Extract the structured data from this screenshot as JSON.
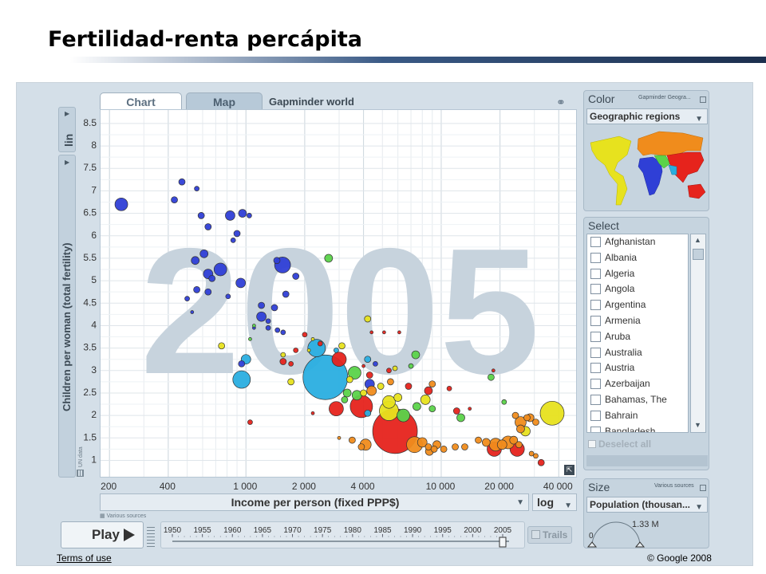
{
  "slide": {
    "title": "Fertilidad-renta percápita"
  },
  "app": {
    "tabs": [
      {
        "label": "Chart"
      },
      {
        "label": "Map"
      }
    ],
    "subtitle": "Gapminder world",
    "y_scale_button": "lin",
    "y_axis_label": "Children per woman (total fertility)",
    "y_source": "UN data",
    "x_axis_label": "Income per person (fixed PPP$)",
    "x_scale": "log",
    "x_source": "Various sources",
    "year_watermark": "2005",
    "play_label": "Play",
    "timeline_years": [
      "1950",
      "1955",
      "1960",
      "1965",
      "1970",
      "1975",
      "1980",
      "1985",
      "1990",
      "1995",
      "2000",
      "2005"
    ],
    "current_year": 2005,
    "trails_label": "Trails",
    "color_panel": {
      "title": "Color",
      "source": "Gapminder Geogra...",
      "selected": "Geographic regions"
    },
    "select_panel": {
      "title": "Select",
      "countries": [
        "Afghanistan",
        "Albania",
        "Algeria",
        "Angola",
        "Argentina",
        "Armenia",
        "Aruba",
        "Australia",
        "Austria",
        "Azerbaijan",
        "Bahamas, The",
        "Bahrain",
        "Bangladesh"
      ],
      "deselect_label": "Deselect all"
    },
    "size_panel": {
      "title": "Size",
      "source": "Various sources",
      "selected": "Population (thousan...",
      "legend_min": "0",
      "legend_max": "1.33 M"
    },
    "footer": {
      "terms": "Terms of use",
      "copyright": "© Google 2008"
    },
    "colors": {
      "asia_east": "#2f3fd6",
      "south_asia": "#2aaee0",
      "europe": "#f08c1c",
      "africa": "#e6231c",
      "americas": "#5bd34a",
      "middle_east": "#e7e21e"
    }
  },
  "chart_data": {
    "type": "scatter",
    "x_scale": "log",
    "xlim": [
      180,
      50000
    ],
    "ylim": [
      0.6,
      8.8
    ],
    "x_ticks": [
      200,
      400,
      1000,
      2000,
      4000,
      10000,
      20000,
      40000
    ],
    "x_tick_labels": [
      "200",
      "400",
      "1 000",
      "2 000",
      "4 000",
      "10 000",
      "20 000",
      "40 000"
    ],
    "y_ticks": [
      1,
      1.5,
      2,
      2.5,
      3,
      3.5,
      4,
      4.5,
      5,
      5.5,
      6,
      6.5,
      7,
      7.5,
      8,
      8.5
    ],
    "y_tick_labels": [
      "1",
      "1.5",
      "2",
      "2.5",
      "3",
      "3.5",
      "4",
      "4.5",
      "5",
      "5.5",
      "6",
      "6.5",
      "7",
      "7.5",
      "8",
      "8.5"
    ],
    "xlabel": "Income per person (fixed PPP$)",
    "ylabel": "Children per woman (total fertility)",
    "year": "2005",
    "points": [
      {
        "x": 230,
        "y": 6.7,
        "r": 8,
        "c": "blue"
      },
      {
        "x": 470,
        "y": 7.2,
        "r": 4,
        "c": "blue"
      },
      {
        "x": 430,
        "y": 6.8,
        "r": 4,
        "c": "blue"
      },
      {
        "x": 560,
        "y": 7.05,
        "r": 3,
        "c": "blue"
      },
      {
        "x": 960,
        "y": 6.5,
        "r": 5,
        "c": "blue"
      },
      {
        "x": 1040,
        "y": 6.45,
        "r": 3,
        "c": "blue"
      },
      {
        "x": 830,
        "y": 6.45,
        "r": 6,
        "c": "blue"
      },
      {
        "x": 590,
        "y": 6.45,
        "r": 4,
        "c": "blue"
      },
      {
        "x": 640,
        "y": 6.2,
        "r": 4,
        "c": "blue"
      },
      {
        "x": 900,
        "y": 6.05,
        "r": 4,
        "c": "blue"
      },
      {
        "x": 860,
        "y": 5.9,
        "r": 3,
        "c": "blue"
      },
      {
        "x": 550,
        "y": 5.45,
        "r": 5,
        "c": "blue"
      },
      {
        "x": 610,
        "y": 5.6,
        "r": 5,
        "c": "blue"
      },
      {
        "x": 740,
        "y": 5.25,
        "r": 8,
        "c": "blue"
      },
      {
        "x": 640,
        "y": 5.15,
        "r": 6,
        "c": "blue"
      },
      {
        "x": 670,
        "y": 5.05,
        "r": 4,
        "c": "blue"
      },
      {
        "x": 940,
        "y": 4.95,
        "r": 6,
        "c": "blue"
      },
      {
        "x": 560,
        "y": 4.8,
        "r": 4,
        "c": "blue"
      },
      {
        "x": 640,
        "y": 4.75,
        "r": 4,
        "c": "blue"
      },
      {
        "x": 1540,
        "y": 5.35,
        "r": 10,
        "c": "blue"
      },
      {
        "x": 1440,
        "y": 5.45,
        "r": 4,
        "c": "blue"
      },
      {
        "x": 1800,
        "y": 5.1,
        "r": 4,
        "c": "blue"
      },
      {
        "x": 500,
        "y": 4.6,
        "r": 3,
        "c": "blue"
      },
      {
        "x": 530,
        "y": 4.3,
        "r": 2,
        "c": "blue"
      },
      {
        "x": 810,
        "y": 4.65,
        "r": 3,
        "c": "blue"
      },
      {
        "x": 1200,
        "y": 4.45,
        "r": 4,
        "c": "blue"
      },
      {
        "x": 1400,
        "y": 4.4,
        "r": 4,
        "c": "blue"
      },
      {
        "x": 1600,
        "y": 4.7,
        "r": 4,
        "c": "blue"
      },
      {
        "x": 1200,
        "y": 4.2,
        "r": 6,
        "c": "blue"
      },
      {
        "x": 1300,
        "y": 4.1,
        "r": 3,
        "c": "blue"
      },
      {
        "x": 1300,
        "y": 3.95,
        "r": 3,
        "c": "blue"
      },
      {
        "x": 1450,
        "y": 3.9,
        "r": 3,
        "c": "blue"
      },
      {
        "x": 1550,
        "y": 3.85,
        "r": 3,
        "c": "blue"
      },
      {
        "x": 1100,
        "y": 3.95,
        "r": 2,
        "c": "blue"
      },
      {
        "x": 2650,
        "y": 5.5,
        "r": 5,
        "c": "green"
      },
      {
        "x": 1100,
        "y": 4.0,
        "r": 2,
        "c": "green"
      },
      {
        "x": 1050,
        "y": 3.7,
        "r": 2,
        "c": "green"
      },
      {
        "x": 750,
        "y": 3.55,
        "r": 4,
        "c": "yellow"
      },
      {
        "x": 4200,
        "y": 4.15,
        "r": 4,
        "c": "yellow"
      },
      {
        "x": 4400,
        "y": 3.85,
        "r": 2,
        "c": "red"
      },
      {
        "x": 5100,
        "y": 3.85,
        "r": 2,
        "c": "red"
      },
      {
        "x": 6100,
        "y": 3.85,
        "r": 2,
        "c": "red"
      },
      {
        "x": 2000,
        "y": 3.8,
        "r": 3,
        "c": "red"
      },
      {
        "x": 2200,
        "y": 3.7,
        "r": 2,
        "c": "yellow"
      },
      {
        "x": 1550,
        "y": 3.35,
        "r": 3,
        "c": "yellow"
      },
      {
        "x": 2100,
        "y": 3.45,
        "r": 2,
        "c": "yellow"
      },
      {
        "x": 2400,
        "y": 3.6,
        "r": 3,
        "c": "red"
      },
      {
        "x": 2300,
        "y": 3.5,
        "r": 11,
        "c": "cyan"
      },
      {
        "x": 1000,
        "y": 3.25,
        "r": 6,
        "c": "cyan"
      },
      {
        "x": 950,
        "y": 3.15,
        "r": 4,
        "c": "blue"
      },
      {
        "x": 1800,
        "y": 3.45,
        "r": 3,
        "c": "red"
      },
      {
        "x": 1550,
        "y": 3.2,
        "r": 4,
        "c": "red"
      },
      {
        "x": 1700,
        "y": 3.15,
        "r": 3,
        "c": "red"
      },
      {
        "x": 3100,
        "y": 3.55,
        "r": 4,
        "c": "yellow"
      },
      {
        "x": 2900,
        "y": 3.45,
        "r": 3,
        "c": "cyan"
      },
      {
        "x": 4200,
        "y": 3.25,
        "r": 4,
        "c": "cyan"
      },
      {
        "x": 4000,
        "y": 3.1,
        "r": 2,
        "c": "red"
      },
      {
        "x": 4600,
        "y": 3.15,
        "r": 3,
        "c": "blue"
      },
      {
        "x": 5400,
        "y": 3.0,
        "r": 3,
        "c": "red"
      },
      {
        "x": 5800,
        "y": 3.05,
        "r": 3,
        "c": "yellow"
      },
      {
        "x": 7000,
        "y": 3.1,
        "r": 3,
        "c": "green"
      },
      {
        "x": 7400,
        "y": 3.35,
        "r": 5,
        "c": "green"
      },
      {
        "x": 3000,
        "y": 3.25,
        "r": 9,
        "c": "red"
      },
      {
        "x": 3600,
        "y": 2.95,
        "r": 8,
        "c": "green"
      },
      {
        "x": 4300,
        "y": 2.9,
        "r": 4,
        "c": "red"
      },
      {
        "x": 2550,
        "y": 2.85,
        "r": 28,
        "c": "cyan"
      },
      {
        "x": 950,
        "y": 2.8,
        "r": 11,
        "c": "cyan"
      },
      {
        "x": 1700,
        "y": 2.75,
        "r": 4,
        "c": "yellow"
      },
      {
        "x": 3400,
        "y": 2.8,
        "r": 4,
        "c": "yellow"
      },
      {
        "x": 4300,
        "y": 2.7,
        "r": 6,
        "c": "blue"
      },
      {
        "x": 4900,
        "y": 2.65,
        "r": 4,
        "c": "yellow"
      },
      {
        "x": 4400,
        "y": 2.55,
        "r": 6,
        "c": "orange"
      },
      {
        "x": 3300,
        "y": 2.5,
        "r": 5,
        "c": "green"
      },
      {
        "x": 3700,
        "y": 2.45,
        "r": 6,
        "c": "green"
      },
      {
        "x": 4000,
        "y": 2.5,
        "r": 4,
        "c": "yellow"
      },
      {
        "x": 3200,
        "y": 2.35,
        "r": 4,
        "c": "green"
      },
      {
        "x": 3900,
        "y": 2.2,
        "r": 14,
        "c": "red"
      },
      {
        "x": 2900,
        "y": 2.15,
        "r": 9,
        "c": "red"
      },
      {
        "x": 4200,
        "y": 2.05,
        "r": 4,
        "c": "cyan"
      },
      {
        "x": 5400,
        "y": 2.3,
        "r": 8,
        "c": "yellow"
      },
      {
        "x": 6000,
        "y": 2.4,
        "r": 5,
        "c": "yellow"
      },
      {
        "x": 5400,
        "y": 2.1,
        "r": 12,
        "c": "yellow"
      },
      {
        "x": 6400,
        "y": 2.0,
        "r": 8,
        "c": "green"
      },
      {
        "x": 7500,
        "y": 2.2,
        "r": 5,
        "c": "green"
      },
      {
        "x": 8300,
        "y": 2.35,
        "r": 6,
        "c": "yellow"
      },
      {
        "x": 8600,
        "y": 2.55,
        "r": 5,
        "c": "red"
      },
      {
        "x": 9000,
        "y": 2.7,
        "r": 4,
        "c": "orange"
      },
      {
        "x": 9000,
        "y": 2.15,
        "r": 4,
        "c": "green"
      },
      {
        "x": 5500,
        "y": 2.75,
        "r": 4,
        "c": "orange"
      },
      {
        "x": 6800,
        "y": 2.65,
        "r": 4,
        "c": "red"
      },
      {
        "x": 11000,
        "y": 2.6,
        "r": 3,
        "c": "red"
      },
      {
        "x": 12000,
        "y": 2.1,
        "r": 4,
        "c": "red"
      },
      {
        "x": 12600,
        "y": 1.95,
        "r": 5,
        "c": "green"
      },
      {
        "x": 14000,
        "y": 2.15,
        "r": 2,
        "c": "red"
      },
      {
        "x": 18000,
        "y": 2.85,
        "r": 4,
        "c": "green"
      },
      {
        "x": 18500,
        "y": 3.0,
        "r": 2,
        "c": "red"
      },
      {
        "x": 21000,
        "y": 2.3,
        "r": 3,
        "c": "green"
      },
      {
        "x": 5800,
        "y": 1.65,
        "r": 28,
        "c": "red"
      },
      {
        "x": 2200,
        "y": 2.05,
        "r": 2,
        "c": "red"
      },
      {
        "x": 1050,
        "y": 1.85,
        "r": 3,
        "c": "red"
      },
      {
        "x": 3500,
        "y": 1.45,
        "r": 4,
        "c": "orange"
      },
      {
        "x": 3000,
        "y": 1.5,
        "r": 2,
        "c": "orange"
      },
      {
        "x": 4100,
        "y": 1.35,
        "r": 7,
        "c": "orange"
      },
      {
        "x": 3900,
        "y": 1.3,
        "r": 4,
        "c": "orange"
      },
      {
        "x": 7300,
        "y": 1.35,
        "r": 10,
        "c": "orange"
      },
      {
        "x": 8000,
        "y": 1.4,
        "r": 6,
        "c": "orange"
      },
      {
        "x": 8600,
        "y": 1.3,
        "r": 4,
        "c": "orange"
      },
      {
        "x": 9200,
        "y": 1.25,
        "r": 4,
        "c": "orange"
      },
      {
        "x": 9500,
        "y": 1.35,
        "r": 5,
        "c": "orange"
      },
      {
        "x": 10300,
        "y": 1.25,
        "r": 4,
        "c": "orange"
      },
      {
        "x": 8700,
        "y": 1.2,
        "r": 5,
        "c": "orange"
      },
      {
        "x": 11800,
        "y": 1.3,
        "r": 4,
        "c": "orange"
      },
      {
        "x": 13200,
        "y": 1.3,
        "r": 4,
        "c": "orange"
      },
      {
        "x": 15500,
        "y": 1.45,
        "r": 4,
        "c": "orange"
      },
      {
        "x": 17000,
        "y": 1.4,
        "r": 5,
        "c": "orange"
      },
      {
        "x": 19000,
        "y": 1.35,
        "r": 8,
        "c": "orange"
      },
      {
        "x": 20500,
        "y": 1.35,
        "r": 6,
        "c": "orange"
      },
      {
        "x": 22000,
        "y": 1.4,
        "r": 8,
        "c": "orange"
      },
      {
        "x": 23500,
        "y": 1.45,
        "r": 5,
        "c": "orange"
      },
      {
        "x": 18700,
        "y": 1.25,
        "r": 9,
        "c": "red"
      },
      {
        "x": 25000,
        "y": 1.35,
        "r": 4,
        "c": "orange"
      },
      {
        "x": 27000,
        "y": 1.65,
        "r": 6,
        "c": "yellow"
      },
      {
        "x": 25500,
        "y": 1.85,
        "r": 7,
        "c": "orange"
      },
      {
        "x": 24000,
        "y": 2.0,
        "r": 4,
        "c": "orange"
      },
      {
        "x": 27500,
        "y": 1.95,
        "r": 4,
        "c": "orange"
      },
      {
        "x": 28500,
        "y": 1.95,
        "r": 5,
        "c": "orange"
      },
      {
        "x": 25500,
        "y": 1.7,
        "r": 5,
        "c": "orange"
      },
      {
        "x": 30500,
        "y": 1.85,
        "r": 4,
        "c": "orange"
      },
      {
        "x": 24500,
        "y": 1.25,
        "r": 9,
        "c": "red"
      },
      {
        "x": 29000,
        "y": 1.15,
        "r": 3,
        "c": "orange"
      },
      {
        "x": 32500,
        "y": 0.95,
        "r": 4,
        "c": "red"
      },
      {
        "x": 30500,
        "y": 1.1,
        "r": 3,
        "c": "orange"
      },
      {
        "x": 37000,
        "y": 2.05,
        "r": 15,
        "c": "yellow"
      }
    ]
  }
}
